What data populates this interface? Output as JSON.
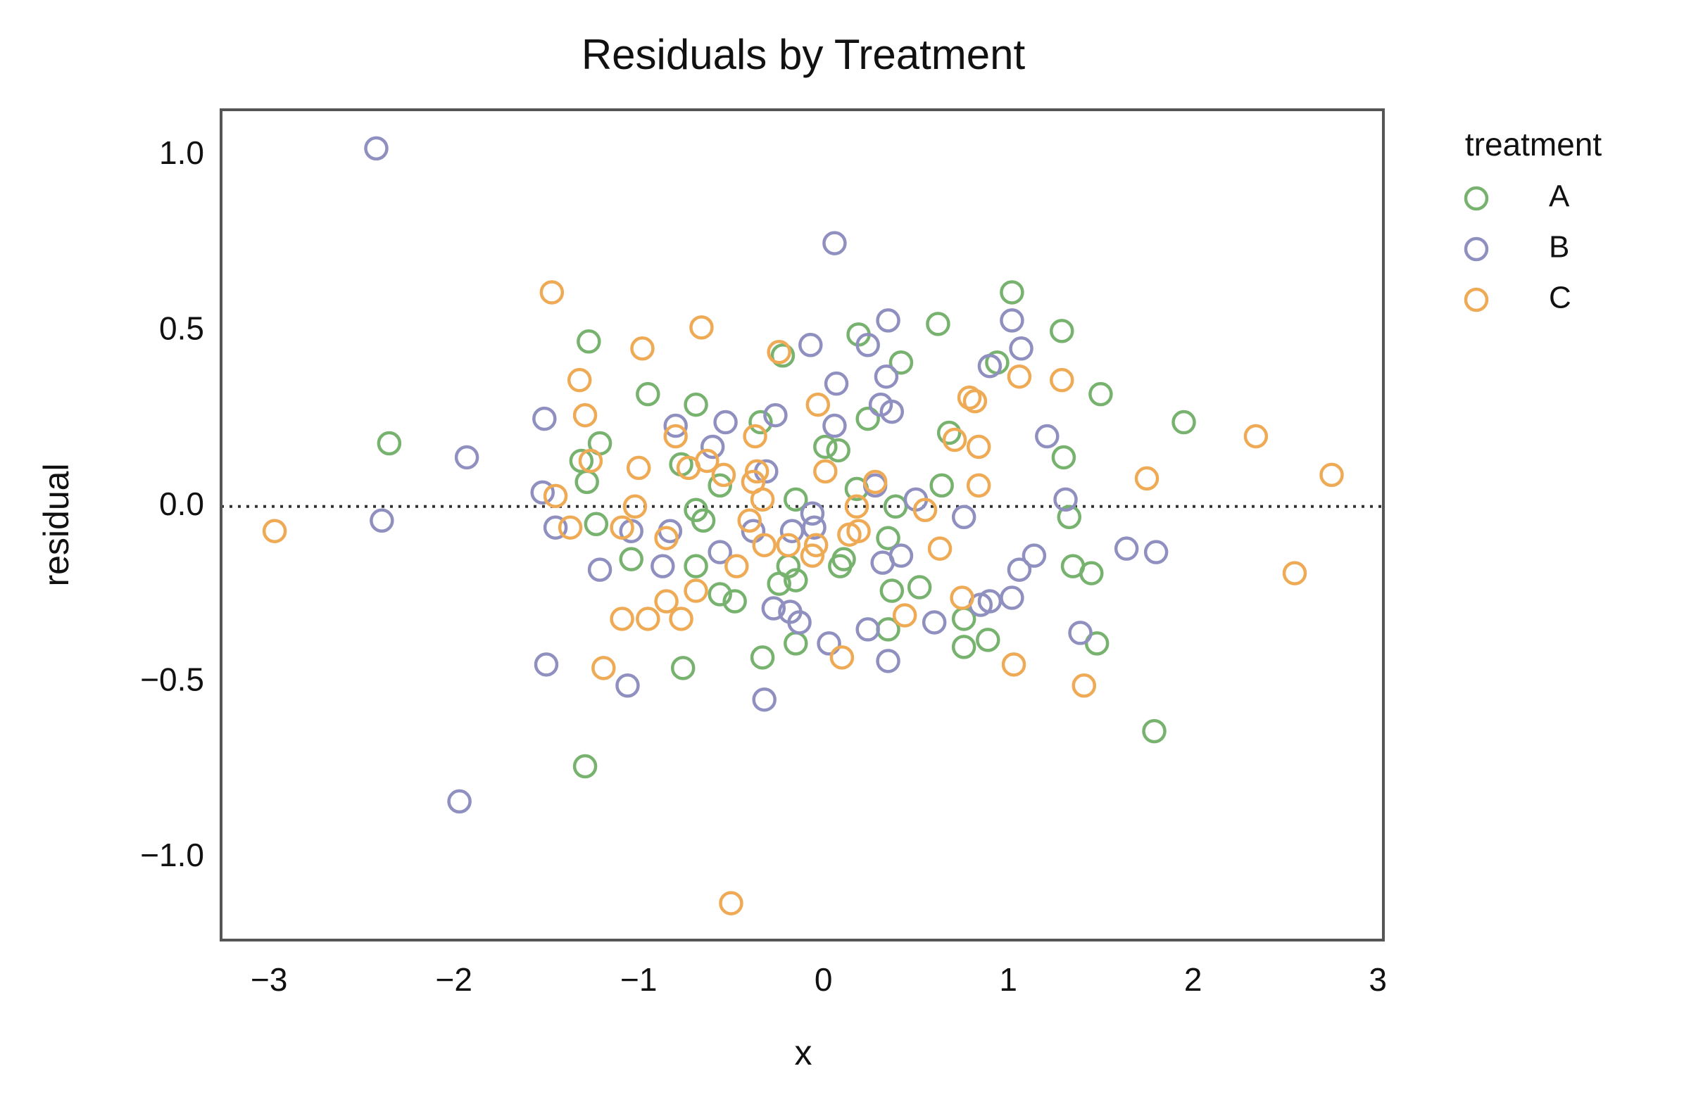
{
  "chart_data": {
    "type": "scatter",
    "title": "Residuals by Treatment",
    "x_label": "x",
    "y_label": "residual",
    "legend_title": "treatment",
    "legend_position": "outside-right",
    "grid": false,
    "hline": 0,
    "marker": "open-circle",
    "xlim": [
      -3.26,
      3.03
    ],
    "ylim": [
      -1.235,
      1.13
    ],
    "xticks": [
      {
        "value": -3,
        "label": "−3"
      },
      {
        "value": -2,
        "label": "−2"
      },
      {
        "value": -1,
        "label": "−1"
      },
      0,
      1,
      2,
      3
    ],
    "yticks": [
      {
        "value": -1,
        "label": "−1.0"
      },
      {
        "value": -0.5,
        "label": "−0.5"
      },
      {
        "value": 0,
        "label": "0.0"
      },
      {
        "value": 0.5,
        "label": "0.5"
      },
      {
        "value": 1,
        "label": "1.0"
      }
    ],
    "series": [
      {
        "name": "A",
        "color": "#77b36f",
        "x": [
          -2.35,
          -1.27,
          -0.95,
          -1.21,
          -1.31,
          -1.28,
          -1.23,
          -1.04,
          -1.29,
          -0.76,
          -0.69,
          -0.77,
          -0.69,
          -0.65,
          -0.69,
          -0.56,
          -0.48,
          -0.56,
          -0.34,
          -0.22,
          -0.33,
          -0.24,
          -0.15,
          -0.15,
          -0.15,
          -0.19,
          0.01,
          0.08,
          0.11,
          0.09,
          0.19,
          0.24,
          0.18,
          0.42,
          0.35,
          0.37,
          0.39,
          0.35,
          0.52,
          0.62,
          0.64,
          0.68,
          0.76,
          0.76,
          0.89,
          0.94,
          1.02,
          1.29,
          1.3,
          1.33,
          1.35,
          1.45,
          1.48,
          1.5,
          1.95,
          1.79
        ],
        "values": [
          0.18,
          0.47,
          0.32,
          0.18,
          0.13,
          0.07,
          -0.05,
          -0.15,
          -0.74,
          -0.46,
          0.29,
          0.12,
          -0.01,
          -0.04,
          -0.17,
          -0.25,
          -0.27,
          0.06,
          0.24,
          0.43,
          -0.43,
          -0.22,
          -0.21,
          -0.39,
          0.02,
          -0.17,
          0.17,
          0.16,
          -0.15,
          -0.17,
          0.49,
          0.25,
          0.05,
          0.41,
          -0.09,
          -0.24,
          0.0,
          -0.35,
          -0.23,
          0.52,
          0.06,
          0.21,
          -0.32,
          -0.4,
          -0.38,
          0.41,
          0.61,
          0.5,
          0.14,
          -0.03,
          -0.17,
          -0.19,
          -0.39,
          0.32,
          0.24,
          -0.64
        ]
      },
      {
        "name": "B",
        "color": "#9090c0",
        "x": [
          -2.42,
          -2.39,
          -1.93,
          -1.97,
          -1.51,
          -1.52,
          -1.45,
          -1.5,
          -1.21,
          -1.06,
          -1.04,
          -0.87,
          -0.83,
          -0.8,
          -0.6,
          -0.53,
          -0.56,
          -0.38,
          -0.31,
          -0.26,
          -0.32,
          -0.27,
          -0.18,
          -0.13,
          -0.17,
          -0.07,
          -0.06,
          -0.05,
          0.03,
          0.06,
          0.07,
          0.06,
          0.24,
          0.24,
          0.28,
          0.31,
          0.32,
          0.35,
          0.34,
          0.37,
          0.42,
          0.35,
          0.5,
          0.6,
          0.76,
          0.85,
          0.9,
          0.9,
          1.02,
          1.07,
          1.02,
          1.06,
          1.14,
          1.21,
          1.31,
          1.39,
          1.64,
          1.8
        ],
        "values": [
          1.02,
          -0.04,
          0.14,
          -0.84,
          0.25,
          0.04,
          -0.06,
          -0.45,
          -0.18,
          -0.51,
          -0.07,
          -0.17,
          -0.07,
          0.23,
          0.17,
          0.24,
          -0.13,
          -0.07,
          0.1,
          0.26,
          -0.55,
          -0.29,
          -0.3,
          -0.33,
          -0.07,
          0.46,
          -0.02,
          -0.06,
          -0.39,
          0.75,
          0.35,
          0.23,
          0.46,
          -0.35,
          0.06,
          0.29,
          -0.16,
          0.53,
          0.37,
          0.27,
          -0.14,
          -0.44,
          0.02,
          -0.33,
          -0.03,
          -0.28,
          0.4,
          -0.27,
          0.53,
          0.45,
          -0.26,
          -0.18,
          -0.14,
          0.2,
          0.02,
          -0.36,
          -0.12,
          -0.13
        ]
      },
      {
        "name": "C",
        "color": "#eeaa55",
        "x": [
          -2.97,
          -1.47,
          -1.45,
          -1.37,
          -1.32,
          -1.29,
          -1.26,
          -1.19,
          -1.09,
          -1.02,
          -1.0,
          -0.98,
          -0.95,
          -1.09,
          -0.85,
          -0.85,
          -0.8,
          -0.77,
          -0.73,
          -0.69,
          -0.66,
          -0.63,
          -0.54,
          -0.47,
          -0.5,
          -0.4,
          -0.37,
          -0.38,
          -0.36,
          -0.33,
          -0.32,
          -0.24,
          -0.19,
          -0.06,
          -0.04,
          -0.03,
          0.01,
          0.1,
          0.14,
          0.19,
          0.18,
          0.28,
          0.44,
          0.55,
          0.63,
          0.71,
          0.75,
          0.79,
          0.82,
          0.84,
          0.84,
          1.03,
          1.06,
          1.29,
          1.41,
          1.75,
          2.34,
          2.55,
          2.75
        ],
        "values": [
          -0.07,
          0.61,
          0.03,
          -0.06,
          0.36,
          0.26,
          0.13,
          -0.46,
          -0.32,
          0.0,
          0.11,
          0.45,
          -0.32,
          -0.06,
          -0.09,
          -0.27,
          0.2,
          -0.32,
          0.11,
          -0.24,
          0.51,
          0.13,
          0.09,
          -0.17,
          -1.13,
          -0.04,
          0.2,
          0.07,
          0.1,
          0.02,
          -0.11,
          0.44,
          -0.11,
          -0.14,
          -0.11,
          0.29,
          0.1,
          -0.43,
          -0.08,
          -0.07,
          0.0,
          0.07,
          -0.31,
          -0.01,
          -0.12,
          0.19,
          -0.26,
          0.31,
          0.3,
          0.17,
          0.06,
          -0.45,
          0.37,
          0.36,
          -0.51,
          0.08,
          0.2,
          -0.19,
          0.09
        ]
      }
    ]
  }
}
